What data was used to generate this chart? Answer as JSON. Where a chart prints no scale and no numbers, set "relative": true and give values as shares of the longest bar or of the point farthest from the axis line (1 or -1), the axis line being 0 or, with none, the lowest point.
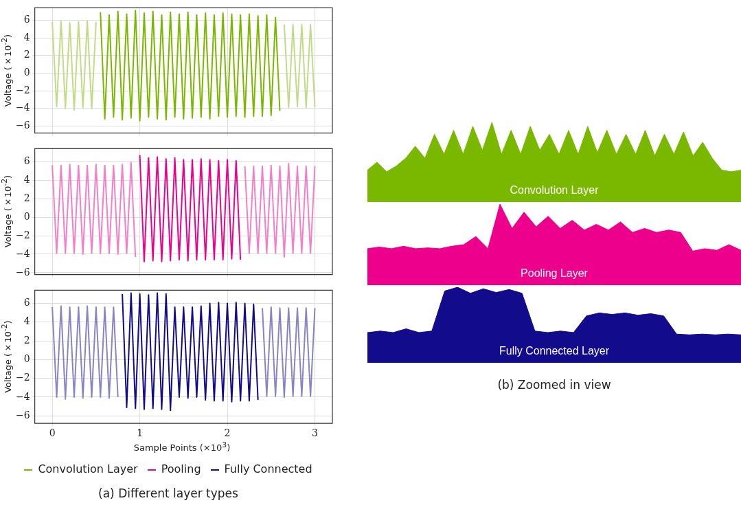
{
  "chart_data": [
    {
      "type": "line",
      "ylabel": "Voltage (×10$^{-2}$)",
      "xlim": [
        -0.2,
        3.2
      ],
      "xticks": [
        0,
        1,
        2,
        3
      ],
      "ylim": [
        -6.8,
        7.4
      ],
      "yticks": [
        -6,
        -4,
        -2,
        0,
        2,
        4,
        6
      ],
      "grid": true,
      "tick_labels": "y",
      "series": [
        {
          "color": "#c0dc86",
          "x": [
            0,
            0.05,
            0.1,
            0.15,
            0.2,
            0.25,
            0.3,
            0.35,
            0.4,
            0.45,
            0.5
          ],
          "values": [
            5.8,
            -3.8,
            5.9,
            -4.0,
            5.7,
            -4.2,
            5.8,
            -3.9,
            5.9,
            -4.0,
            5.8
          ]
        },
        {
          "name": "Convolution Layer",
          "color": "#7ab800",
          "x": [
            0.55,
            0.6,
            0.65,
            0.7,
            0.75,
            0.8,
            0.85,
            0.9,
            0.95,
            1.0,
            1.05,
            1.1,
            1.15,
            1.2,
            1.25,
            1.3,
            1.35,
            1.4,
            1.45,
            1.5,
            1.55,
            1.6,
            1.65,
            1.7,
            1.75,
            1.8,
            1.85,
            1.9,
            1.95,
            2.0,
            2.05,
            2.1,
            2.15,
            2.2,
            2.25,
            2.3,
            2.35,
            2.4,
            2.45,
            2.5,
            2.55,
            2.6
          ],
          "values": [
            6.9,
            -5.2,
            6.6,
            -5.0,
            7.0,
            -5.3,
            6.7,
            -5.1,
            7.1,
            -5.4,
            6.8,
            -5.0,
            7.0,
            -5.2,
            6.6,
            -5.3,
            6.9,
            -5.0,
            6.7,
            -5.2,
            6.9,
            -5.1,
            6.6,
            -5.0,
            6.8,
            -5.2,
            6.6,
            -4.9,
            6.8,
            -5.0,
            6.7,
            -4.9,
            6.6,
            -5.0,
            6.7,
            -4.9,
            6.5,
            -4.9,
            6.6,
            -4.8,
            6.3,
            -4.3
          ]
        },
        {
          "color": "#c0dc86",
          "x": [
            2.65,
            2.7,
            2.75,
            2.8,
            2.85,
            2.9,
            2.95,
            3.0
          ],
          "values": [
            5.5,
            -3.9,
            5.5,
            -3.8,
            5.5,
            -3.9,
            5.5,
            -3.9
          ]
        }
      ]
    },
    {
      "type": "line",
      "ylabel": "Voltage (×10$^{-2}$)",
      "xlim": [
        -0.2,
        3.2
      ],
      "xticks": [
        0,
        1,
        2,
        3
      ],
      "ylim": [
        -6.2,
        7.4
      ],
      "yticks": [
        -6,
        -4,
        -2,
        0,
        2,
        4,
        6
      ],
      "grid": true,
      "tick_labels": "y",
      "series": [
        {
          "color": "#f47fc6",
          "x": [
            0,
            0.05,
            0.1,
            0.15,
            0.2,
            0.25,
            0.3,
            0.35,
            0.4,
            0.45,
            0.5,
            0.55,
            0.6,
            0.65,
            0.7,
            0.75,
            0.8,
            0.85,
            0.9,
            0.95
          ],
          "values": [
            5.6,
            -3.9,
            5.6,
            -3.9,
            5.7,
            -3.9,
            5.6,
            -4.0,
            5.6,
            -3.9,
            5.7,
            -3.9,
            5.6,
            -3.9,
            5.6,
            -4.0,
            5.7,
            -3.9,
            5.9,
            -4.3
          ]
        },
        {
          "name": "Pooling",
          "color": "#ec008c",
          "x": [
            1.0,
            1.05,
            1.1,
            1.15,
            1.2,
            1.25,
            1.3,
            1.35,
            1.4,
            1.45,
            1.5,
            1.55,
            1.6,
            1.65,
            1.7,
            1.75,
            1.8,
            1.85,
            1.9,
            1.95,
            2.0,
            2.05,
            2.1,
            2.15
          ],
          "values": [
            6.7,
            -4.8,
            6.4,
            -4.7,
            6.5,
            -4.8,
            6.3,
            -4.7,
            6.4,
            -4.6,
            6.2,
            -4.7,
            6.2,
            -4.6,
            6.3,
            -4.6,
            6.2,
            -4.6,
            6.1,
            -4.6,
            6.2,
            -4.5,
            6.1,
            -4.6
          ]
        },
        {
          "color": "#f47fc6",
          "x": [
            2.2,
            2.25,
            2.3,
            2.35,
            2.4,
            2.45,
            2.5,
            2.55,
            2.6,
            2.65,
            2.7,
            2.75,
            2.8,
            2.85,
            2.9,
            2.95,
            3.0
          ],
          "values": [
            5.5,
            -3.9,
            5.5,
            -3.9,
            5.5,
            -3.9,
            5.6,
            -3.9,
            5.5,
            -4.3,
            5.8,
            -3.9,
            5.5,
            -3.9,
            5.5,
            -3.9,
            5.5
          ]
        }
      ]
    },
    {
      "type": "line",
      "xlabel": "Sample Points (×10$^{3}$)",
      "ylabel": "Voltage (×10$^{-2}$)",
      "xlim": [
        -0.2,
        3.2
      ],
      "xticks": [
        0,
        1,
        2,
        3
      ],
      "ylim": [
        -6.8,
        7.4
      ],
      "yticks": [
        -6,
        -4,
        -2,
        0,
        2,
        4,
        6
      ],
      "grid": true,
      "legend": "bottom",
      "annotations": [
        "(a) Different layer types"
      ],
      "series": [
        {
          "color": "#8884c6",
          "x": [
            0,
            0.05,
            0.1,
            0.15,
            0.2,
            0.25,
            0.3,
            0.35,
            0.4,
            0.45,
            0.5,
            0.55,
            0.6,
            0.65,
            0.7,
            0.75
          ],
          "values": [
            5.6,
            -4.0,
            5.7,
            -4.2,
            5.6,
            -4.0,
            5.6,
            -4.1,
            5.7,
            -4.0,
            5.6,
            -4.0,
            5.6,
            -4.1,
            5.6,
            -4.0
          ]
        },
        {
          "name": "Fully Connected",
          "color": "#120c8c",
          "x": [
            0.8,
            0.85,
            0.9,
            0.95,
            1.0,
            1.05,
            1.1,
            1.15,
            1.2,
            1.25,
            1.3,
            1.35,
            1.4,
            1.45,
            1.5,
            1.55,
            1.6,
            1.65,
            1.7,
            1.75,
            1.8,
            1.85,
            1.9,
            1.95,
            2.0,
            2.05,
            2.1,
            2.15,
            2.2,
            2.25,
            2.3,
            2.35
          ],
          "values": [
            7.0,
            -5.1,
            7.1,
            -5.2,
            7.0,
            -5.3,
            6.9,
            -5.2,
            7.1,
            -5.3,
            7.0,
            -5.4,
            5.6,
            -4.0,
            5.6,
            -4.1,
            5.6,
            -4.0,
            5.7,
            -4.3,
            6.0,
            -4.4,
            6.1,
            -4.4,
            6.0,
            -4.5,
            6.1,
            -4.4,
            6.0,
            -4.4,
            5.9,
            -4.3
          ]
        },
        {
          "color": "#8884c6",
          "x": [
            2.4,
            2.45,
            2.5,
            2.55,
            2.6,
            2.65,
            2.7,
            2.75,
            2.8,
            2.85,
            2.9,
            2.95,
            3.0
          ],
          "values": [
            5.5,
            -3.9,
            5.6,
            -3.9,
            5.5,
            -4.0,
            5.5,
            -3.9,
            5.5,
            -3.9,
            5.5,
            -3.9,
            5.5
          ]
        }
      ]
    },
    {
      "type": "area",
      "relative": true,
      "annotations": [
        "Convolution Layer"
      ],
      "categories": [
        null,
        null,
        null,
        null,
        null,
        null,
        null,
        null,
        null,
        null,
        null,
        null,
        null,
        null,
        null,
        null,
        null,
        null,
        null,
        null,
        null,
        null,
        null,
        null,
        null,
        null,
        null,
        null,
        null,
        null,
        null,
        null,
        null,
        null,
        null,
        null,
        null,
        null,
        null,
        null
      ],
      "series": [
        {
          "color": "#7ab800",
          "values": [
            0.4,
            0.5,
            0.38,
            0.45,
            0.55,
            0.7,
            0.55,
            0.85,
            0.6,
            0.9,
            0.6,
            0.95,
            0.65,
            1.0,
            0.6,
            0.9,
            0.6,
            0.95,
            0.65,
            0.85,
            0.6,
            0.9,
            0.6,
            0.95,
            0.62,
            0.9,
            0.6,
            0.85,
            0.6,
            0.9,
            0.58,
            0.85,
            0.6,
            0.88,
            0.58,
            0.75,
            0.55,
            0.4,
            0.38,
            0.4
          ]
        }
      ]
    },
    {
      "type": "area",
      "relative": true,
      "annotations": [
        "Pooling Layer"
      ],
      "categories": [
        null,
        null,
        null,
        null,
        null,
        null,
        null,
        null,
        null,
        null,
        null,
        null,
        null,
        null,
        null,
        null,
        null,
        null,
        null,
        null,
        null,
        null,
        null,
        null,
        null,
        null,
        null,
        null,
        null,
        null,
        null,
        null
      ],
      "series": [
        {
          "color": "#ec008c",
          "values": [
            0.45,
            0.47,
            0.45,
            0.48,
            0.45,
            0.46,
            0.45,
            0.48,
            0.5,
            0.6,
            0.45,
            1.0,
            0.7,
            0.9,
            0.72,
            0.85,
            0.7,
            0.8,
            0.68,
            0.75,
            0.68,
            0.78,
            0.65,
            0.7,
            0.65,
            0.68,
            0.65,
            0.42,
            0.45,
            0.43,
            0.5,
            0.43
          ]
        }
      ]
    },
    {
      "type": "area",
      "relative": true,
      "annotations": [
        "Fully Connected Layer",
        "(b) Zoomed in view"
      ],
      "categories": [
        null,
        null,
        null,
        null,
        null,
        null,
        null,
        null,
        null,
        null,
        null,
        null,
        null,
        null,
        null,
        null,
        null,
        null,
        null,
        null,
        null,
        null,
        null,
        null,
        null,
        null,
        null,
        null,
        null,
        null
      ],
      "series": [
        {
          "color": "#120c8c",
          "values": [
            0.4,
            0.42,
            0.4,
            0.45,
            0.4,
            0.42,
            0.95,
            1.0,
            0.92,
            0.98,
            0.93,
            0.97,
            0.92,
            0.42,
            0.4,
            0.42,
            0.4,
            0.62,
            0.66,
            0.64,
            0.66,
            0.63,
            0.65,
            0.62,
            0.38,
            0.37,
            0.38,
            0.37,
            0.38,
            0.37
          ]
        }
      ]
    }
  ]
}
